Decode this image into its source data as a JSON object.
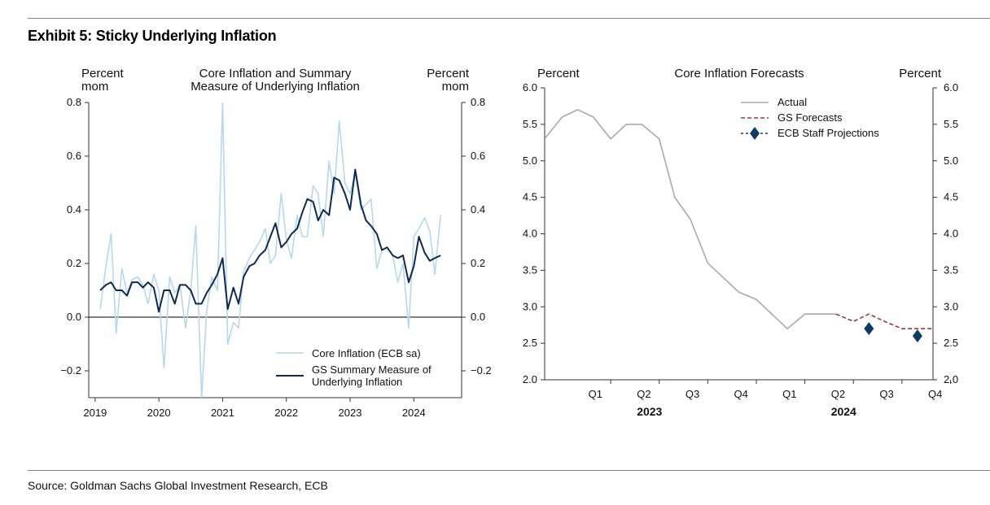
{
  "exhibit_title": "Exhibit 5: Sticky Underlying Inflation",
  "source": "Source: Goldman Sachs Global Investment Research,  ECB",
  "colors": {
    "light_series": "#b6d7ee",
    "dark_series": "#0e2a4f",
    "actual": "#a9a9a9",
    "gs_forecast": "#9a3838",
    "ecb": "#0d3b66"
  },
  "chart_data": [
    {
      "type": "line",
      "title": "Core Inflation and Summary Measure of Underlying Inflation",
      "title_lines": [
        "Core Inflation and Summary",
        "Measure of Underlying Inflation"
      ],
      "ylabel_left": [
        "Percent",
        "mom"
      ],
      "ylabel_right": [
        "Percent",
        "mom"
      ],
      "ylim": [
        -0.3,
        0.8
      ],
      "yticks": [
        -0.2,
        0.0,
        0.2,
        0.4,
        0.6,
        0.8
      ],
      "ytick_labels": [
        "−0.2",
        "0.0",
        "0.2",
        "0.4",
        "0.6",
        "0.8"
      ],
      "xlim": [
        2018.9,
        2024.75
      ],
      "xticks": [
        2019,
        2020,
        2021,
        2022,
        2023,
        2024
      ],
      "xtick_labels": [
        "2019",
        "2020",
        "2021",
        "2022",
        "2023",
        "2024"
      ],
      "zero_line": true,
      "grid": false,
      "legend_position": "bottom-right",
      "series": [
        {
          "name": "Core Inflation (ECB sa)",
          "color": "#b6d7ee",
          "x": [
            2019.08,
            2019.17,
            2019.25,
            2019.33,
            2019.42,
            2019.5,
            2019.58,
            2019.67,
            2019.75,
            2019.83,
            2019.92,
            2020.0,
            2020.08,
            2020.17,
            2020.25,
            2020.33,
            2020.42,
            2020.5,
            2020.58,
            2020.67,
            2020.75,
            2020.83,
            2020.92,
            2021.0,
            2021.08,
            2021.17,
            2021.25,
            2021.33,
            2021.42,
            2021.5,
            2021.58,
            2021.67,
            2021.75,
            2021.83,
            2021.92,
            2022.0,
            2022.08,
            2022.17,
            2022.25,
            2022.33,
            2022.42,
            2022.5,
            2022.58,
            2022.67,
            2022.75,
            2022.83,
            2022.92,
            2023.0,
            2023.08,
            2023.17,
            2023.25,
            2023.33,
            2023.42,
            2023.5,
            2023.58,
            2023.67,
            2023.75,
            2023.83,
            2023.92,
            2024.0,
            2024.08,
            2024.17,
            2024.25,
            2024.33,
            2024.42
          ],
          "y": [
            0.03,
            0.19,
            0.31,
            -0.06,
            0.18,
            0.09,
            0.14,
            0.15,
            0.12,
            0.05,
            0.16,
            0.1,
            -0.19,
            0.15,
            0.09,
            0.12,
            -0.04,
            0.1,
            0.34,
            -0.3,
            0.02,
            0.15,
            0.1,
            0.8,
            -0.1,
            -0.02,
            -0.04,
            0.17,
            0.22,
            0.25,
            0.28,
            0.33,
            0.2,
            0.23,
            0.46,
            0.29,
            0.22,
            0.38,
            0.3,
            0.3,
            0.49,
            0.46,
            0.3,
            0.58,
            0.46,
            0.73,
            0.5,
            0.46,
            0.54,
            0.4,
            0.42,
            0.44,
            0.18,
            0.25,
            0.26,
            0.23,
            0.13,
            0.2,
            -0.04,
            0.3,
            0.33,
            0.37,
            0.32,
            0.16,
            0.38
          ]
        },
        {
          "name": "GS Summary Measure of Underlying Inflation",
          "name_lines": [
            "GS Summary Measure of",
            "Underlying Inflation"
          ],
          "color": "#0e2a4f",
          "x": [
            2019.08,
            2019.17,
            2019.25,
            2019.33,
            2019.42,
            2019.5,
            2019.58,
            2019.67,
            2019.75,
            2019.83,
            2019.92,
            2020.0,
            2020.08,
            2020.17,
            2020.25,
            2020.33,
            2020.42,
            2020.5,
            2020.58,
            2020.67,
            2020.75,
            2020.83,
            2020.92,
            2021.0,
            2021.08,
            2021.17,
            2021.25,
            2021.33,
            2021.42,
            2021.5,
            2021.58,
            2021.67,
            2021.75,
            2021.83,
            2021.92,
            2022.0,
            2022.08,
            2022.17,
            2022.25,
            2022.33,
            2022.42,
            2022.5,
            2022.58,
            2022.67,
            2022.75,
            2022.83,
            2022.92,
            2023.0,
            2023.08,
            2023.17,
            2023.25,
            2023.33,
            2023.42,
            2023.5,
            2023.58,
            2023.67,
            2023.75,
            2023.83,
            2023.92,
            2024.0,
            2024.08,
            2024.17,
            2024.25,
            2024.33,
            2024.42
          ],
          "y": [
            0.1,
            0.12,
            0.13,
            0.1,
            0.1,
            0.08,
            0.13,
            0.13,
            0.11,
            0.13,
            0.11,
            0.02,
            0.1,
            0.1,
            0.05,
            0.12,
            0.12,
            0.1,
            0.05,
            0.05,
            0.09,
            0.12,
            0.16,
            0.22,
            0.03,
            0.11,
            0.05,
            0.15,
            0.19,
            0.2,
            0.23,
            0.25,
            0.3,
            0.35,
            0.26,
            0.28,
            0.31,
            0.33,
            0.39,
            0.44,
            0.43,
            0.36,
            0.4,
            0.38,
            0.52,
            0.51,
            0.46,
            0.4,
            0.55,
            0.42,
            0.36,
            0.34,
            0.31,
            0.25,
            0.26,
            0.23,
            0.22,
            0.23,
            0.13,
            0.19,
            0.3,
            0.24,
            0.21,
            0.22,
            0.23
          ]
        }
      ]
    },
    {
      "type": "line",
      "title": "Core Inflation Forecasts",
      "ylabel_left": "Percent",
      "ylabel_right": "Percent",
      "ylim": [
        2.0,
        6.0
      ],
      "yticks": [
        2.0,
        2.5,
        3.0,
        3.5,
        4.0,
        4.5,
        5.0,
        5.5,
        6.0
      ],
      "ytick_labels": [
        "2.0",
        "2.5",
        "3.0",
        "3.5",
        "4.0",
        "4.5",
        "5.0",
        "5.5",
        "6.0"
      ],
      "xlim": [
        2022.83,
        2024.83
      ],
      "xticks": [
        2023.17,
        2023.42,
        2023.67,
        2023.92,
        2024.17,
        2024.42,
        2024.67,
        2024.92
      ],
      "quarter_labels": [
        {
          "x": 2023.125,
          "label": "Q1"
        },
        {
          "x": 2023.375,
          "label": "Q2"
        },
        {
          "x": 2023.625,
          "label": "Q3"
        },
        {
          "x": 2023.875,
          "label": "Q4"
        },
        {
          "x": 2024.125,
          "label": "Q1"
        },
        {
          "x": 2024.375,
          "label": "Q2"
        },
        {
          "x": 2024.625,
          "label": "Q3"
        },
        {
          "x": 2024.875,
          "label": "Q4"
        }
      ],
      "year_labels": [
        {
          "x": 2023.5,
          "label": "2023"
        },
        {
          "x": 2024.5,
          "label": "2024"
        }
      ],
      "grid": false,
      "legend_position": "top-center",
      "series": [
        {
          "name": "Actual",
          "color": "#a9a9a9",
          "style": "solid",
          "x": [
            2022.83,
            2022.92,
            2023.0,
            2023.08,
            2023.17,
            2023.25,
            2023.33,
            2023.42,
            2023.5,
            2023.58,
            2023.67,
            2023.75,
            2023.83,
            2023.92,
            2024.0,
            2024.08,
            2024.17,
            2024.25,
            2024.33
          ],
          "y": [
            5.3,
            5.6,
            5.7,
            5.6,
            5.3,
            5.5,
            5.5,
            5.3,
            4.5,
            4.2,
            3.6,
            3.4,
            3.2,
            3.1,
            2.9,
            2.7,
            2.9,
            2.9,
            2.9
          ]
        },
        {
          "name": "GS Forecasts",
          "color": "#9a3838",
          "style": "dashed",
          "x": [
            2024.33,
            2024.42,
            2024.5,
            2024.58,
            2024.67,
            2024.75,
            2024.83
          ],
          "y": [
            2.9,
            2.8,
            2.9,
            2.8,
            2.7,
            2.7,
            2.7
          ]
        },
        {
          "name": "ECB Staff Projections",
          "color": "#0d3b66",
          "style": "marker-diamond",
          "x": [
            2024.5,
            2024.75
          ],
          "y": [
            2.7,
            2.6
          ]
        }
      ]
    }
  ]
}
